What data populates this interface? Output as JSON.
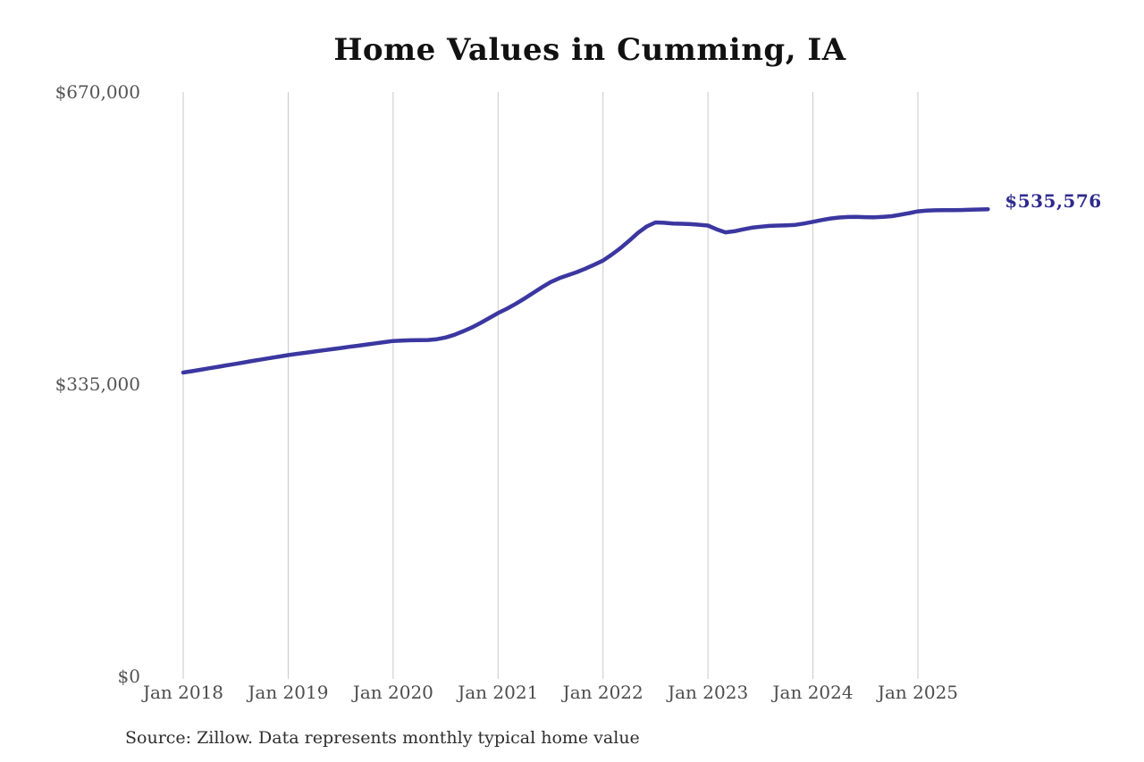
{
  "chart_data": {
    "type": "line",
    "title": "Home Values in Cumming, IA",
    "xlabel": "",
    "ylabel": "",
    "source_note": "Source: Zillow. Data represents monthly typical home value",
    "end_label": "$535,576",
    "end_value": 535576,
    "ylim": [
      0,
      670000
    ],
    "y_ticks": [
      {
        "value": 0,
        "label": "$0"
      },
      {
        "value": 335000,
        "label": "$335,000"
      },
      {
        "value": 670000,
        "label": "$670,000"
      }
    ],
    "x_tick_labels": [
      "Jan 2018",
      "Jan 2019",
      "Jan 2020",
      "Jan 2021",
      "Jan 2022",
      "Jan 2023",
      "Jan 2024",
      "Jan 2025"
    ],
    "x_range": {
      "start": "Jan 2018",
      "end": "Sep 2025",
      "interval": "monthly"
    },
    "grid": "vertical-only",
    "legend": "none",
    "colors": {
      "line": "#3b37a0",
      "end_label": "#2e2a8e",
      "grid": "#c9c9c9",
      "tick_text": "#555555",
      "title": "#111111",
      "source": "#2e2e2e"
    },
    "series": [
      {
        "name": "Typical home value",
        "values": [
          348300,
          349900,
          351500,
          353200,
          354900,
          356600,
          358300,
          360000,
          361700,
          363400,
          365000,
          366700,
          368300,
          369700,
          371000,
          372400,
          373700,
          375100,
          376400,
          377800,
          379100,
          380500,
          381800,
          383200,
          384500,
          385000,
          385300,
          385400,
          385600,
          386500,
          388500,
          391500,
          395500,
          400000,
          405200,
          410800,
          416500,
          421500,
          427000,
          433000,
          439500,
          446000,
          452000,
          456500,
          460000,
          463500,
          467500,
          472000,
          476700,
          483500,
          491000,
          499500,
          508500,
          515800,
          520400,
          520000,
          519200,
          518900,
          518500,
          517800,
          516800,
          512500,
          509100,
          510300,
          512400,
          514400,
          515500,
          516400,
          516800,
          517100,
          517700,
          519200,
          521100,
          523200,
          524900,
          526100,
          526700,
          526900,
          526500,
          526300,
          526900,
          527600,
          529200,
          531100,
          533100,
          533900,
          534400,
          534600,
          534500,
          534700,
          535000,
          535300,
          535576
        ]
      }
    ]
  }
}
